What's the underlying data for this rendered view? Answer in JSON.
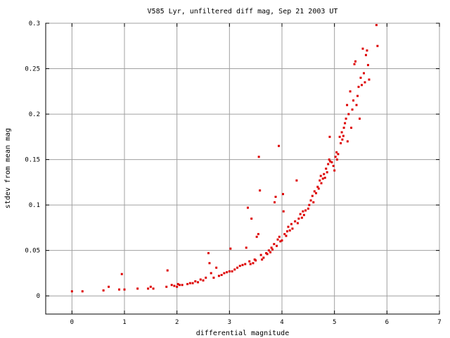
{
  "chart_data": {
    "type": "scatter",
    "title": "V585 Lyr, unfiltered diff mag, Sep 21 2003 UT",
    "xlabel": "differential magnitude",
    "ylabel": "stdev from mean mag",
    "xlim": [
      -0.5,
      7
    ],
    "ylim": [
      -0.02,
      0.3
    ],
    "xticks": [
      0,
      1,
      2,
      3,
      4,
      5,
      6,
      7
    ],
    "yticks": [
      0,
      0.05,
      0.1,
      0.15,
      0.2,
      0.25,
      0.3
    ],
    "xtick_labels": [
      "0",
      "1",
      "2",
      "3",
      "4",
      "5",
      "6",
      "7"
    ],
    "ytick_labels": [
      "0",
      "0.05",
      "0.1",
      "0.15",
      "0.2",
      "0.25",
      "0.3"
    ],
    "grid": true,
    "point_color": "#dd0000",
    "points": [
      [
        0.0,
        0.005
      ],
      [
        0.2,
        0.005
      ],
      [
        0.6,
        0.006
      ],
      [
        0.7,
        0.01
      ],
      [
        0.9,
        0.007
      ],
      [
        0.95,
        0.024
      ],
      [
        1.0,
        0.007
      ],
      [
        1.25,
        0.008
      ],
      [
        1.45,
        0.008
      ],
      [
        1.5,
        0.01
      ],
      [
        1.55,
        0.008
      ],
      [
        1.8,
        0.01
      ],
      [
        1.82,
        0.028
      ],
      [
        1.9,
        0.012
      ],
      [
        1.95,
        0.011
      ],
      [
        2.0,
        0.01
      ],
      [
        2.02,
        0.013
      ],
      [
        2.05,
        0.012
      ],
      [
        2.1,
        0.012
      ],
      [
        2.2,
        0.013
      ],
      [
        2.25,
        0.014
      ],
      [
        2.3,
        0.014
      ],
      [
        2.35,
        0.016
      ],
      [
        2.4,
        0.015
      ],
      [
        2.45,
        0.018
      ],
      [
        2.5,
        0.017
      ],
      [
        2.55,
        0.02
      ],
      [
        2.6,
        0.047
      ],
      [
        2.62,
        0.036
      ],
      [
        2.65,
        0.025
      ],
      [
        2.7,
        0.02
      ],
      [
        2.75,
        0.031
      ],
      [
        2.8,
        0.022
      ],
      [
        2.85,
        0.023
      ],
      [
        2.9,
        0.025
      ],
      [
        2.95,
        0.026
      ],
      [
        3.0,
        0.027
      ],
      [
        3.02,
        0.052
      ],
      [
        3.05,
        0.027
      ],
      [
        3.1,
        0.029
      ],
      [
        3.15,
        0.031
      ],
      [
        3.2,
        0.033
      ],
      [
        3.25,
        0.034
      ],
      [
        3.3,
        0.035
      ],
      [
        3.32,
        0.053
      ],
      [
        3.35,
        0.097
      ],
      [
        3.38,
        0.038
      ],
      [
        3.4,
        0.035
      ],
      [
        3.42,
        0.085
      ],
      [
        3.45,
        0.036
      ],
      [
        3.48,
        0.04
      ],
      [
        3.5,
        0.039
      ],
      [
        3.52,
        0.065
      ],
      [
        3.55,
        0.068
      ],
      [
        3.56,
        0.153
      ],
      [
        3.58,
        0.116
      ],
      [
        3.6,
        0.045
      ],
      [
        3.62,
        0.04
      ],
      [
        3.65,
        0.042
      ],
      [
        3.7,
        0.047
      ],
      [
        3.72,
        0.046
      ],
      [
        3.75,
        0.05
      ],
      [
        3.78,
        0.048
      ],
      [
        3.8,
        0.053
      ],
      [
        3.82,
        0.051
      ],
      [
        3.85,
        0.057
      ],
      [
        3.86,
        0.103
      ],
      [
        3.88,
        0.109
      ],
      [
        3.9,
        0.055
      ],
      [
        3.92,
        0.062
      ],
      [
        3.94,
        0.165
      ],
      [
        3.95,
        0.065
      ],
      [
        3.97,
        0.06
      ],
      [
        4.0,
        0.061
      ],
      [
        4.02,
        0.112
      ],
      [
        4.03,
        0.093
      ],
      [
        4.05,
        0.068
      ],
      [
        4.08,
        0.066
      ],
      [
        4.1,
        0.071
      ],
      [
        4.12,
        0.076
      ],
      [
        4.15,
        0.072
      ],
      [
        4.18,
        0.079
      ],
      [
        4.2,
        0.074
      ],
      [
        4.25,
        0.082
      ],
      [
        4.28,
        0.127
      ],
      [
        4.3,
        0.08
      ],
      [
        4.32,
        0.085
      ],
      [
        4.35,
        0.09
      ],
      [
        4.38,
        0.086
      ],
      [
        4.4,
        0.093
      ],
      [
        4.42,
        0.089
      ],
      [
        4.45,
        0.094
      ],
      [
        4.5,
        0.096
      ],
      [
        4.52,
        0.1
      ],
      [
        4.55,
        0.105
      ],
      [
        4.58,
        0.11
      ],
      [
        4.6,
        0.103
      ],
      [
        4.62,
        0.115
      ],
      [
        4.65,
        0.113
      ],
      [
        4.68,
        0.12
      ],
      [
        4.7,
        0.118
      ],
      [
        4.72,
        0.127
      ],
      [
        4.74,
        0.132
      ],
      [
        4.75,
        0.124
      ],
      [
        4.78,
        0.129
      ],
      [
        4.8,
        0.134
      ],
      [
        4.82,
        0.13
      ],
      [
        4.84,
        0.14
      ],
      [
        4.86,
        0.136
      ],
      [
        4.88,
        0.145
      ],
      [
        4.9,
        0.15
      ],
      [
        4.91,
        0.175
      ],
      [
        4.92,
        0.148
      ],
      [
        4.95,
        0.147
      ],
      [
        4.98,
        0.143
      ],
      [
        5.0,
        0.138
      ],
      [
        5.02,
        0.153
      ],
      [
        5.04,
        0.158
      ],
      [
        5.05,
        0.15
      ],
      [
        5.07,
        0.156
      ],
      [
        5.1,
        0.175
      ],
      [
        5.12,
        0.168
      ],
      [
        5.14,
        0.18
      ],
      [
        5.15,
        0.172
      ],
      [
        5.17,
        0.176
      ],
      [
        5.18,
        0.185
      ],
      [
        5.2,
        0.19
      ],
      [
        5.22,
        0.195
      ],
      [
        5.24,
        0.21
      ],
      [
        5.25,
        0.17
      ],
      [
        5.27,
        0.2
      ],
      [
        5.3,
        0.225
      ],
      [
        5.32,
        0.185
      ],
      [
        5.34,
        0.205
      ],
      [
        5.36,
        0.215
      ],
      [
        5.38,
        0.255
      ],
      [
        5.4,
        0.258
      ],
      [
        5.42,
        0.21
      ],
      [
        5.44,
        0.22
      ],
      [
        5.46,
        0.23
      ],
      [
        5.48,
        0.195
      ],
      [
        5.5,
        0.24
      ],
      [
        5.52,
        0.232
      ],
      [
        5.54,
        0.272
      ],
      [
        5.56,
        0.245
      ],
      [
        5.58,
        0.235
      ],
      [
        5.6,
        0.265
      ],
      [
        5.62,
        0.27
      ],
      [
        5.64,
        0.254
      ],
      [
        5.66,
        0.238
      ],
      [
        5.8,
        0.298
      ],
      [
        5.82,
        0.275
      ]
    ]
  }
}
